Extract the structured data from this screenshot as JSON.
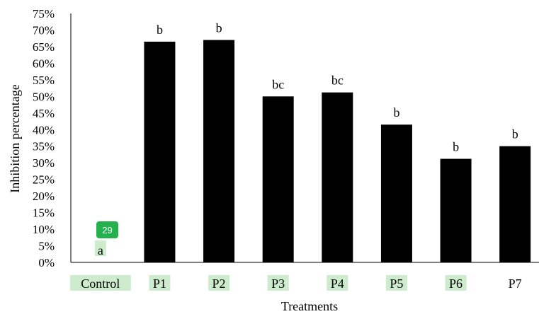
{
  "chart_data": {
    "type": "bar",
    "categories": [
      "Control",
      "P1",
      "P2",
      "P3",
      "P4",
      "P5",
      "P6",
      "P7"
    ],
    "values": [
      0,
      66.5,
      67,
      50,
      51.2,
      41.5,
      31.2,
      35
    ],
    "significance_labels": [
      "a",
      "b",
      "b",
      "bc",
      "bc",
      "b",
      "b",
      "b"
    ],
    "xlabel": "Treatments",
    "ylabel": "Inhibition percentage",
    "ylim": [
      0,
      75
    ],
    "y_ticks": [
      "0%",
      "5%",
      "10%",
      "15%",
      "20%",
      "25%",
      "30%",
      "35%",
      "40%",
      "45%",
      "50%",
      "55%",
      "60%",
      "65%",
      "70%",
      "75%"
    ],
    "grid": false,
    "bar_color": "#000000",
    "highlight_color": "#cdeccd",
    "highlighted_categories": [
      0,
      1,
      2,
      3,
      4,
      5,
      6
    ],
    "badge": {
      "text": "29",
      "color": "#22b14c"
    }
  }
}
